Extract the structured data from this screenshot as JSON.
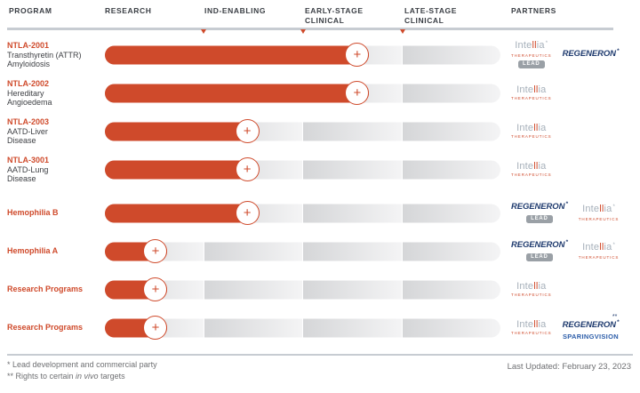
{
  "header": {
    "columns": [
      {
        "lines": [
          "PROGRAM"
        ]
      },
      {
        "lines": [
          "RESEARCH"
        ]
      },
      {
        "lines": [
          "IND-ENABLING"
        ]
      },
      {
        "lines": [
          "EARLY-STAGE",
          "CLINICAL"
        ]
      },
      {
        "lines": [
          "LATE-STAGE",
          "CLINICAL"
        ]
      },
      {
        "lines": [
          "PARTNERS"
        ]
      }
    ]
  },
  "logos": {
    "intellia_text": "Intellia",
    "intellia_sub": "THERAPEUTICS",
    "regeneron_text": "REGENERON",
    "sparingvision_text": "SPARINGVISION",
    "lead_label": "LEAD"
  },
  "pipeline": {
    "plus_symbol": "+",
    "rows": [
      {
        "program": "NTLA-2001",
        "description": [
          "Transthyretin (ATTR)",
          "Amyloidosis"
        ],
        "stage": "Early-Stage Clinical",
        "stage_pct": 63.8,
        "partners": [
          {
            "logo": "intellia",
            "mark": "*",
            "lead": true
          },
          {
            "logo": "regeneron",
            "mark": "*"
          }
        ]
      },
      {
        "program": "NTLA-2002",
        "description": [
          "Hereditary",
          "Angioedema"
        ],
        "stage": "Early-Stage Clinical",
        "stage_pct": 63.8,
        "partners": [
          {
            "logo": "intellia"
          }
        ]
      },
      {
        "program": "NTLA-2003",
        "description": [
          "AATD-Liver",
          "Disease"
        ],
        "stage": "IND-Enabling",
        "stage_pct": 36,
        "partners": [
          {
            "logo": "intellia"
          }
        ]
      },
      {
        "program": "NTLA-3001",
        "description": [
          "AATD-Lung",
          "Disease"
        ],
        "stage": "IND-Enabling",
        "stage_pct": 36,
        "partners": [
          {
            "logo": "intellia"
          }
        ]
      },
      {
        "program": "Hemophilia B",
        "description": [],
        "stage": "IND-Enabling",
        "stage_pct": 36,
        "partners": [
          {
            "logo": "regeneron",
            "mark": "*",
            "lead": true
          },
          {
            "logo": "intellia",
            "mark": "*"
          }
        ]
      },
      {
        "program": "Hemophilia A",
        "description": [],
        "stage": "Research",
        "stage_pct": 12.8,
        "partners": [
          {
            "logo": "regeneron",
            "mark": "*",
            "lead": true
          },
          {
            "logo": "intellia",
            "mark": "*"
          }
        ]
      },
      {
        "program": "Research Programs",
        "description": [],
        "stage": "Research",
        "stage_pct": 12.8,
        "partners": [
          {
            "logo": "intellia"
          }
        ]
      },
      {
        "program": "Research Programs",
        "description": [],
        "stage": "Research",
        "stage_pct": 12.8,
        "partners": [
          {
            "logo": "intellia"
          },
          {
            "logo": "regeneron-sparingvision",
            "mark": "*",
            "sup": "**"
          }
        ]
      }
    ]
  },
  "footer": {
    "note1": "* Lead development and commercial party",
    "note2_prefix": "** Rights to certain ",
    "note2_italic": "in vivo",
    "note2_suffix": " targets",
    "last_updated": "Last Updated: February 23, 2023"
  },
  "colors": {
    "accent_orange": "#cf4a2b",
    "regeneron_blue": "#1e3a6e",
    "sparingvision_blue": "#2c5da9",
    "intellia_gray": "#a6b0ba",
    "header_text": "#3a3e44",
    "muted_text": "#6e6f72",
    "rule_gray": "#c7ccd2",
    "badge_gray": "#9aa0a6"
  },
  "chart_data": {
    "type": "bar",
    "orientation": "horizontal",
    "title": "Development pipeline by stage",
    "stages": [
      "Research",
      "IND-Enabling",
      "Early-Stage Clinical",
      "Late-Stage Clinical"
    ],
    "categories": [
      "NTLA-2001 Transthyretin (ATTR) Amyloidosis",
      "NTLA-2002 Hereditary Angioedema",
      "NTLA-2003 AATD-Liver Disease",
      "NTLA-3001 AATD-Lung Disease",
      "Hemophilia B",
      "Hemophilia A",
      "Research Programs",
      "Research Programs"
    ],
    "values_pct_of_track": [
      63.8,
      63.8,
      36,
      36,
      36,
      12.8,
      12.8,
      12.8
    ],
    "stage_reached": [
      "Early-Stage Clinical",
      "Early-Stage Clinical",
      "IND-Enabling",
      "IND-Enabling",
      "IND-Enabling",
      "Research",
      "Research",
      "Research"
    ],
    "partners": [
      [
        "Intellia (lead)",
        "Regeneron"
      ],
      [
        "Intellia"
      ],
      [
        "Intellia"
      ],
      [
        "Intellia"
      ],
      [
        "Regeneron (lead)",
        "Intellia"
      ],
      [
        "Regeneron (lead)",
        "Intellia"
      ],
      [
        "Intellia"
      ],
      [
        "Intellia",
        "Regeneron / SparingVision"
      ]
    ],
    "xlim": [
      0,
      100
    ]
  }
}
